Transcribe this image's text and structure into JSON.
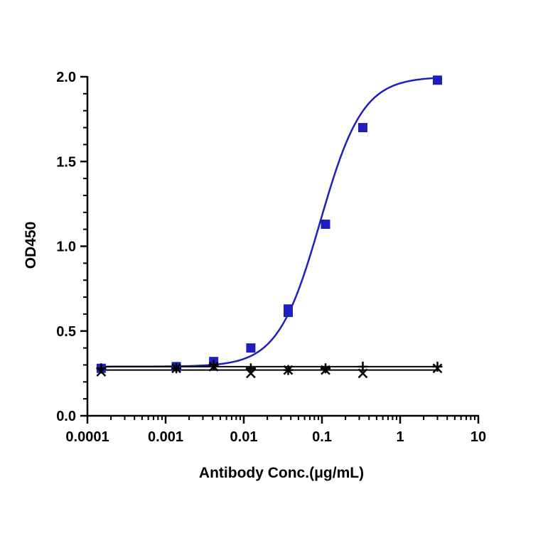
{
  "chart_data": {
    "type": "scatter",
    "title": "",
    "xlabel": "Antibody Conc.(μg/mL)",
    "ylabel": "OD450",
    "x_scale": "log",
    "xlim": [
      0.0001,
      10
    ],
    "ylim": [
      0,
      2.0
    ],
    "x_ticks": [
      0.0001,
      0.001,
      0.01,
      0.1,
      1,
      10
    ],
    "x_tick_labels": [
      "0.0001",
      "0.001",
      "0.01",
      "0.1",
      "1",
      "10"
    ],
    "y_ticks": [
      0.0,
      0.5,
      1.0,
      1.5,
      2.0
    ],
    "y_tick_labels": [
      "0.0",
      "0.5",
      "1.0",
      "1.5",
      "2.0"
    ],
    "grid": false,
    "legend": "none",
    "series": [
      {
        "marker": "square",
        "color": "#1f1fbf",
        "fit": "sigmoid",
        "fit_params": {
          "bottom": 0.29,
          "top": 2.0,
          "ec50": 0.095,
          "hill": 1.6
        },
        "x": [
          0.00015,
          0.00137,
          0.00412,
          0.0123,
          0.037,
          0.037,
          0.111,
          0.333,
          3.0
        ],
        "y": [
          0.28,
          0.29,
          0.32,
          0.4,
          0.61,
          0.63,
          1.13,
          1.7,
          1.98
        ]
      },
      {
        "marker": "plus",
        "color": "#000000",
        "fit": "flat",
        "fit_level": 0.29,
        "x": [
          0.00015,
          0.00137,
          0.00412,
          0.0123,
          0.037,
          0.111,
          0.333,
          3.0
        ],
        "y": [
          0.28,
          0.28,
          0.3,
          0.28,
          0.27,
          0.28,
          0.29,
          0.29
        ]
      },
      {
        "marker": "x",
        "color": "#000000",
        "fit": "flat",
        "fit_level": 0.27,
        "x": [
          0.00015,
          0.00137,
          0.00412,
          0.0123,
          0.037,
          0.111,
          0.333,
          3.0
        ],
        "y": [
          0.26,
          0.28,
          0.29,
          0.25,
          0.27,
          0.27,
          0.25,
          0.28
        ]
      }
    ]
  }
}
